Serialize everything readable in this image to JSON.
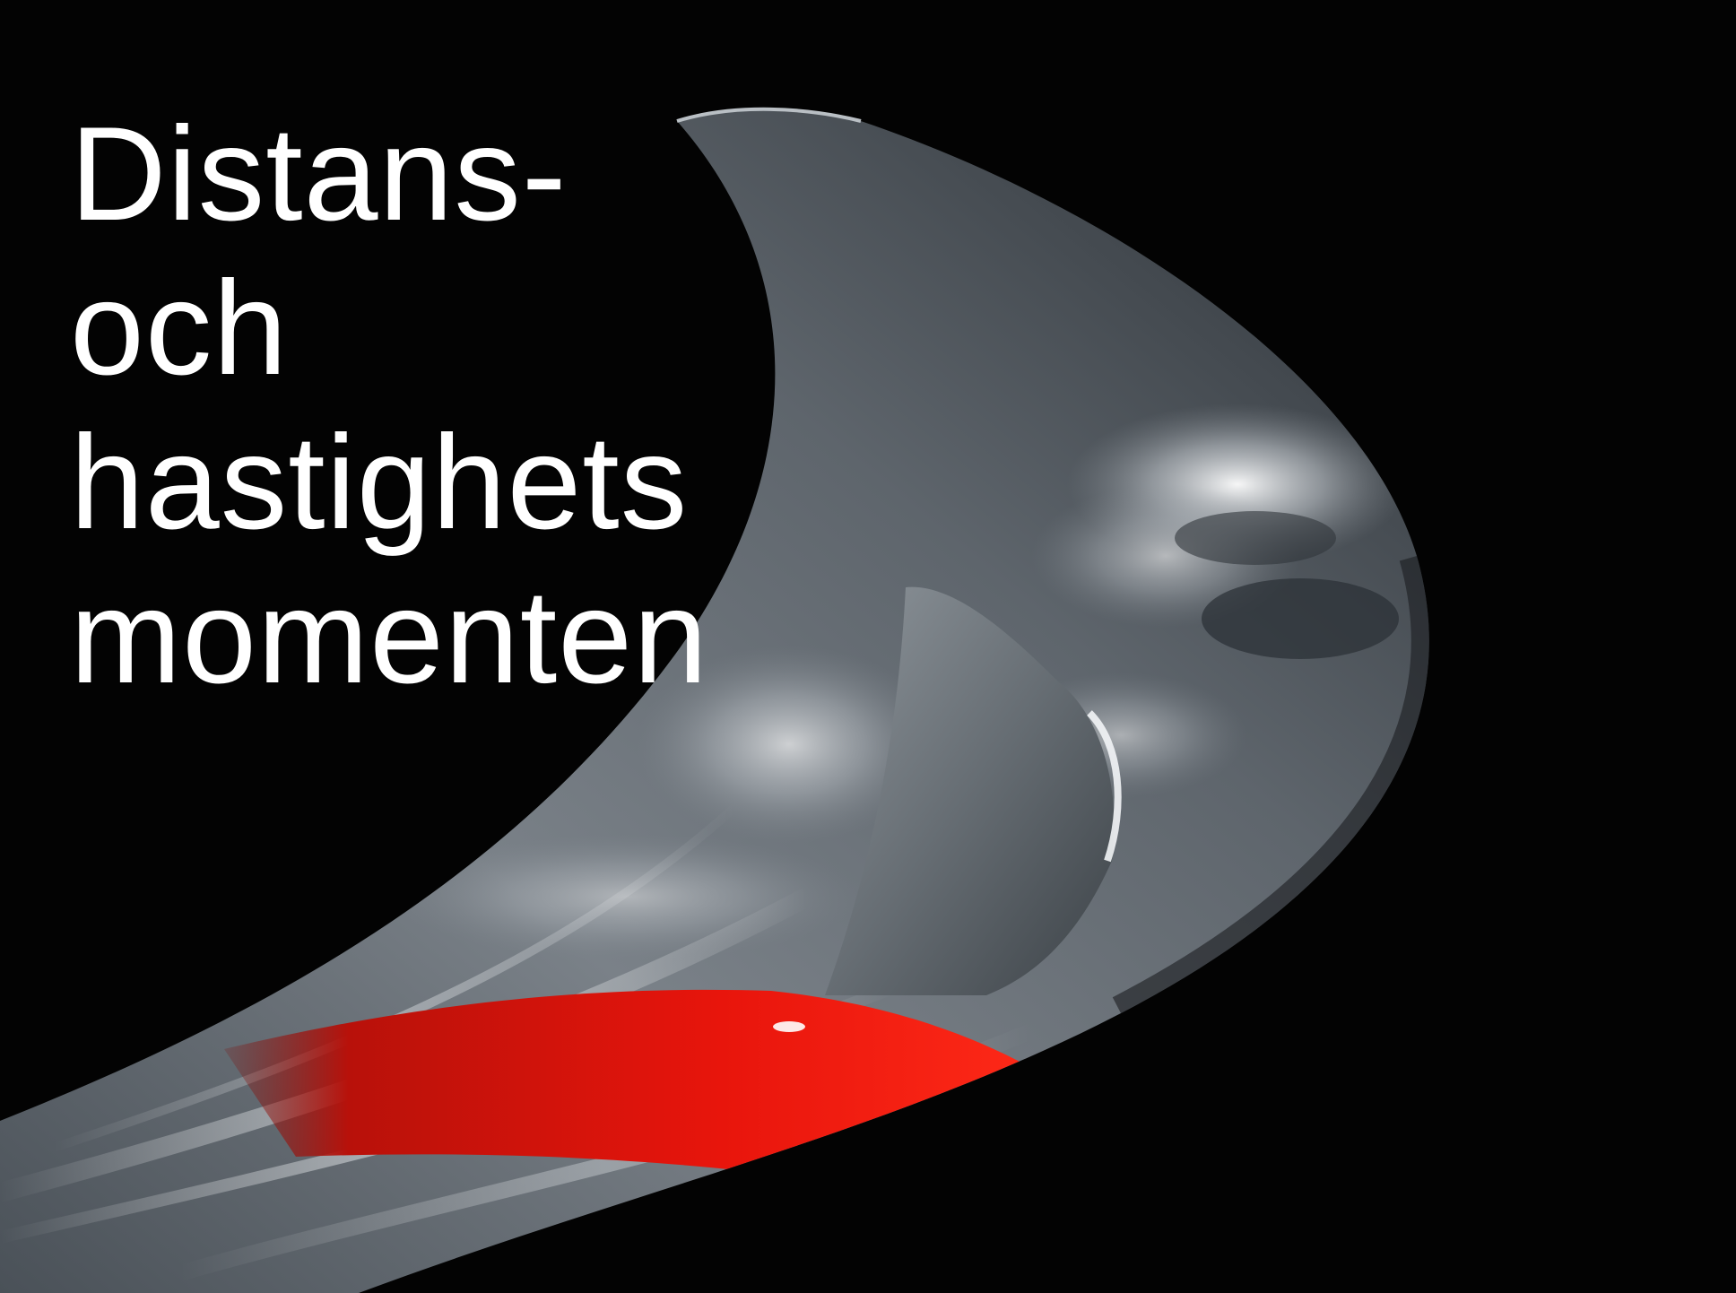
{
  "slide": {
    "title_lines": [
      "Distans-",
      "och",
      "hastighets",
      "momenten"
    ]
  },
  "image": {
    "subject": "glider-wing-tip-reflection",
    "colors": {
      "background": "#030303",
      "wing_gray": "#6d7379",
      "wing_highlight": "#d9dde0",
      "red_stripe": "#e0140c",
      "text": "#ffffff"
    }
  }
}
